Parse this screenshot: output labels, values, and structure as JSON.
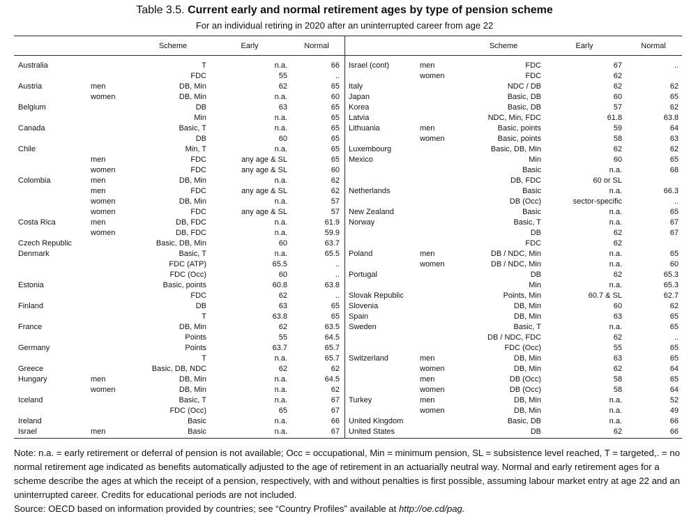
{
  "header": {
    "label": "Table 3.5.",
    "title": "Current early and normal retirement ages by type of pension scheme",
    "subtitle": "For an individual retiring in 2020 after an uninterrupted career from age 22"
  },
  "table": {
    "columns": [
      "Scheme",
      "Early",
      "Normal"
    ],
    "left": [
      [
        "Australia",
        null,
        "T",
        "n.a.",
        66
      ],
      [
        null,
        null,
        "FDC",
        55,
        ".."
      ],
      [
        "Austria",
        "men",
        "DB, Min",
        62,
        65
      ],
      [
        null,
        "women",
        "DB, Min",
        "n.a.",
        60
      ],
      [
        "Belgium",
        null,
        "DB",
        63,
        65
      ],
      [
        null,
        null,
        "Min",
        "n.a.",
        65
      ],
      [
        "Canada",
        null,
        "Basic, T",
        "n.a.",
        65
      ],
      [
        null,
        null,
        "DB",
        60,
        65
      ],
      [
        "Chile",
        null,
        "Min, T",
        "n.a.",
        65
      ],
      [
        null,
        "men",
        "FDC",
        "any age & SL",
        65
      ],
      [
        null,
        "women",
        "FDC",
        "any age & SL",
        60
      ],
      [
        "Colombia",
        "men",
        "DB, Min",
        "n.a.",
        62
      ],
      [
        null,
        "men",
        "FDC",
        "any age & SL",
        62
      ],
      [
        null,
        "women",
        "DB, Min",
        "n.a.",
        57
      ],
      [
        null,
        "women",
        "FDC",
        "any age & SL",
        57
      ],
      [
        "Costa Rica",
        "men",
        "DB, FDC",
        "n.a.",
        61.9
      ],
      [
        null,
        "women",
        "DB, FDC",
        "n.a.",
        59.9
      ],
      [
        "Czech Republic",
        null,
        "Basic, DB, Min",
        60,
        63.7
      ],
      [
        "Denmark",
        null,
        "Basic, T",
        "n.a.",
        65.5
      ],
      [
        null,
        null,
        "FDC (ATP)",
        65.5,
        ".."
      ],
      [
        null,
        null,
        "FDC (Occ)",
        60,
        ".."
      ],
      [
        "Estonia",
        null,
        "Basic, points",
        60.8,
        63.8
      ],
      [
        null,
        null,
        "FDC",
        62,
        ".."
      ],
      [
        "Finland",
        null,
        "DB",
        63,
        65
      ],
      [
        null,
        null,
        "T",
        63.8,
        65
      ],
      [
        "France",
        null,
        "DB, Min",
        62,
        63.5
      ],
      [
        null,
        null,
        "Points",
        55,
        64.5
      ],
      [
        "Germany",
        null,
        "Points",
        63.7,
        65.7
      ],
      [
        null,
        null,
        "T",
        "n.a.",
        65.7
      ],
      [
        "Greece",
        null,
        "Basic, DB, NDC",
        62,
        62
      ],
      [
        "Hungary",
        "men",
        "DB, Min",
        "n.a.",
        64.5
      ],
      [
        null,
        "women",
        "DB, Min",
        "n.a.",
        62
      ],
      [
        "Iceland",
        null,
        "Basic, T",
        "n.a.",
        67
      ],
      [
        null,
        null,
        "FDC (Occ)",
        65,
        67
      ],
      [
        "Ireland",
        null,
        "Basic",
        "n.a.",
        66
      ],
      [
        "Israel",
        "men",
        "Basic",
        "n.a.",
        67
      ]
    ],
    "right": [
      [
        "Israel (cont)",
        "men",
        "FDC",
        67,
        ".."
      ],
      [
        null,
        "women",
        "FDC",
        62,
        null
      ],
      [
        "Italy",
        null,
        "NDC / DB",
        62,
        62
      ],
      [
        "Japan",
        null,
        "Basic, DB",
        60,
        65
      ],
      [
        "Korea",
        null,
        "Basic, DB",
        57,
        62
      ],
      [
        "Latvia",
        null,
        "NDC, Min, FDC",
        61.8,
        63.8
      ],
      [
        "Lithuania",
        "men",
        "Basic, points",
        59,
        64
      ],
      [
        null,
        "women",
        "Basic, points",
        58,
        63
      ],
      [
        "Luxembourg",
        null,
        "Basic, DB, Min",
        62,
        62
      ],
      [
        "Mexico",
        null,
        "Min",
        60,
        65
      ],
      [
        null,
        null,
        "Basic",
        "n.a.",
        68
      ],
      [
        null,
        null,
        "DB, FDC",
        "60 or SL",
        null
      ],
      [
        "Netherlands",
        null,
        "Basic",
        "n.a.",
        66.3
      ],
      [
        null,
        null,
        "DB (Occ)",
        "sector-specific",
        ".."
      ],
      [
        "New Zealand",
        null,
        "Basic",
        "n.a.",
        65
      ],
      [
        "Norway",
        null,
        "Basic, T",
        "n.a.",
        67
      ],
      [
        null,
        null,
        "DB",
        62,
        67
      ],
      [
        null,
        null,
        "FDC",
        62,
        null
      ],
      [
        "Poland",
        "men",
        "DB / NDC, Min",
        "n.a.",
        65
      ],
      [
        null,
        "women",
        "DB / NDC, Min",
        "n.a.",
        60
      ],
      [
        "Portugal",
        null,
        "DB",
        62,
        65.3
      ],
      [
        null,
        null,
        "Min",
        "n.a.",
        65.3
      ],
      [
        "Slovak Republic",
        null,
        "Points, Min",
        "60.7 & SL",
        62.7
      ],
      [
        "Slovenia",
        null,
        "DB, Min",
        60,
        62
      ],
      [
        "Spain",
        null,
        "DB, Min",
        63,
        65
      ],
      [
        "Sweden",
        null,
        "Basic, T",
        "n.a.",
        65
      ],
      [
        null,
        null,
        "DB / NDC, FDC",
        62,
        ".."
      ],
      [
        null,
        null,
        "FDC (Occ)",
        55,
        65
      ],
      [
        "Switzerland",
        "men",
        "DB, Min",
        63,
        65
      ],
      [
        null,
        "women",
        "DB, Min",
        62,
        64
      ],
      [
        null,
        "men",
        "DB (Occ)",
        58,
        65
      ],
      [
        null,
        "women",
        "DB (Occ)",
        58,
        64
      ],
      [
        "Turkey",
        "men",
        "DB, Min",
        "n.a.",
        52
      ],
      [
        null,
        "women",
        "DB, Min",
        "n.a.",
        49
      ],
      [
        "United Kingdom",
        null,
        "Basic, DB",
        "n.a.",
        66
      ],
      [
        "United States",
        null,
        "DB",
        62,
        66
      ]
    ]
  },
  "notes": {
    "note": "Note: n.a. = early retirement or deferral of pension is not available; Occ = occupational, Min = minimum pension, SL = subsistence level reached, T = targeted,. = no normal retirement age indicated as benefits automatically adjusted to the age of retirement in an actuarially neutral way. Normal and early retirement ages for a scheme describe the ages at which the receipt of a pension, respectively, with and without penalties is first possible, assuming labour market entry at age 22 and an uninterrupted career. Credits for educational periods are not included.",
    "source": {
      "text": "Source: OECD based on information provided by countries; see “Country Profiles” available at ",
      "link": "http://oe.cd/pag."
    }
  }
}
